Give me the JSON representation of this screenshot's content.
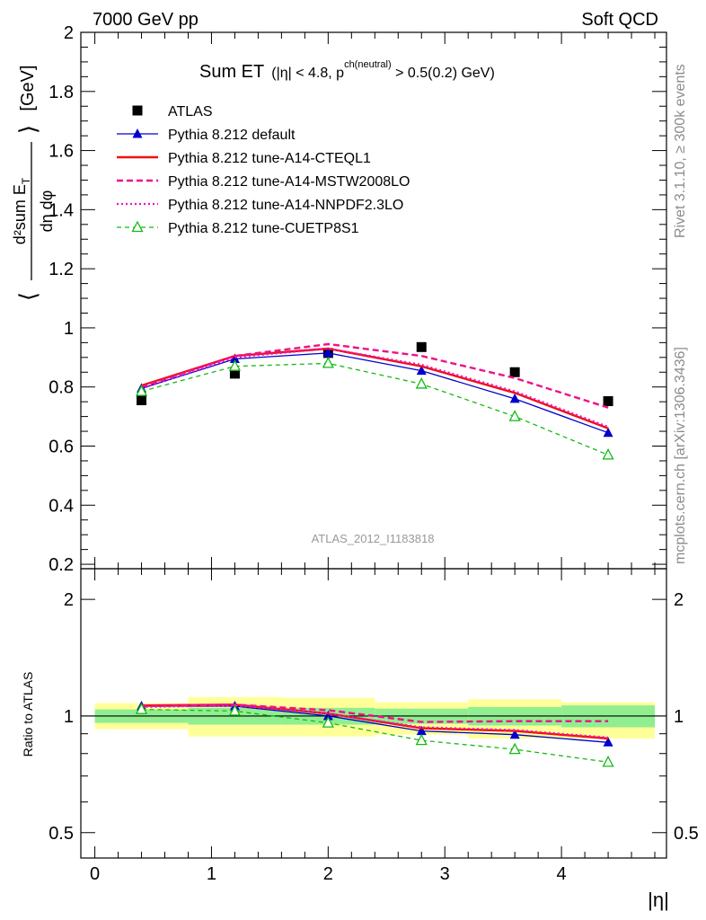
{
  "header": {
    "left": "7000 GeV pp",
    "right": "Soft QCD"
  },
  "side_labels": {
    "rivet": "Rivet 3.1.10, ≥ 300k events",
    "mcplots": "mcplots.cern.ch [arXiv:1306.3436]"
  },
  "watermark": "ATLAS_2012_I1183818",
  "colors": {
    "atlas": "#000000",
    "default": "#0000cc",
    "cteql1": "#ee1111",
    "mstw": "#ee1188",
    "nnpdf": "#ee11cc",
    "cuetp8s1": "#11bb11",
    "band_inner": "#90ee90",
    "band_outer": "#ffff99"
  },
  "chart_data": [
    {
      "type": "line",
      "panel": "main",
      "title_main": "Sum ET",
      "title_cut": "(|η| < 4.8, p",
      "title_sup": "ch(neutral)",
      "title_end": " > 0.5(0.2) GeV)",
      "ylabel_parts": {
        "open": "⟨",
        "num": "d²sum E",
        "num_sub": "T",
        "den": "dη dφ",
        "close": "⟩",
        "unit": "[GeV]"
      },
      "xlabel": "",
      "xlim": [
        -0.12,
        4.9
      ],
      "ylim": [
        0.185,
        2.0
      ],
      "yticks": [
        0.2,
        0.4,
        0.6,
        0.8,
        1,
        1.2,
        1.4,
        1.6,
        1.8,
        2
      ],
      "ytick_labels": [
        "0.2",
        "0.4",
        "0.6",
        "0.8",
        "1",
        "1.2",
        "1.4",
        "1.6",
        "1.8",
        "2"
      ],
      "x": [
        0.4,
        1.2,
        2.0,
        2.8,
        3.6,
        4.4
      ],
      "bins": [
        [
          0.0,
          0.8
        ],
        [
          0.8,
          1.6
        ],
        [
          1.6,
          2.4
        ],
        [
          2.4,
          3.2
        ],
        [
          3.2,
          4.0
        ],
        [
          4.0,
          4.8
        ]
      ],
      "series": [
        {
          "key": "atlas",
          "name": "ATLAS",
          "values": [
            0.755,
            0.845,
            0.915,
            0.935,
            0.85,
            0.752
          ]
        },
        {
          "key": "default",
          "name": "Pythia 8.212 default",
          "values": [
            0.795,
            0.895,
            0.915,
            0.855,
            0.76,
            0.645
          ]
        },
        {
          "key": "cteql1",
          "name": "Pythia 8.212 tune-A14-CTEQL1",
          "values": [
            0.805,
            0.905,
            0.93,
            0.87,
            0.78,
            0.66
          ]
        },
        {
          "key": "mstw",
          "name": "Pythia 8.212 tune-A14-MSTW2008LO",
          "values": [
            0.8,
            0.905,
            0.945,
            0.905,
            0.83,
            0.73
          ]
        },
        {
          "key": "nnpdf",
          "name": "Pythia 8.212 tune-A14-NNPDF2.3LO",
          "values": [
            0.795,
            0.9,
            0.93,
            0.875,
            0.785,
            0.665
          ]
        },
        {
          "key": "cuetp8s1",
          "name": "Pythia 8.212 tune-CUETP8S1",
          "values": [
            0.785,
            0.87,
            0.88,
            0.81,
            0.7,
            0.57
          ]
        }
      ]
    },
    {
      "type": "line",
      "panel": "ratio",
      "ylabel": "Ratio to ATLAS",
      "xlabel": "|η|",
      "xlim": [
        -0.12,
        4.9
      ],
      "ylim": [
        0.43,
        2.4
      ],
      "yscale": "log",
      "yticks": [
        0.5,
        1,
        2
      ],
      "ytick_labels": [
        "0.5",
        "1",
        "2"
      ],
      "xticks": [
        0,
        1,
        2,
        3,
        4
      ],
      "xtick_labels": [
        "0",
        "1",
        "2",
        "3",
        "4"
      ],
      "x": [
        0.4,
        1.2,
        2.0,
        2.8,
        3.6,
        4.4
      ],
      "bins": [
        [
          0.0,
          0.8
        ],
        [
          0.8,
          1.6
        ],
        [
          1.6,
          2.4
        ],
        [
          2.4,
          3.2
        ],
        [
          3.2,
          4.0
        ],
        [
          4.0,
          4.8
        ]
      ],
      "band_inner": [
        [
          0.96,
          1.04
        ],
        [
          0.95,
          1.05
        ],
        [
          0.95,
          1.05
        ],
        [
          0.955,
          1.045
        ],
        [
          0.945,
          1.055
        ],
        [
          0.935,
          1.065
        ]
      ],
      "band_outer": [
        [
          0.925,
          1.08
        ],
        [
          0.885,
          1.12
        ],
        [
          0.885,
          1.115
        ],
        [
          0.895,
          1.085
        ],
        [
          0.875,
          1.105
        ],
        [
          0.875,
          1.085
        ]
      ],
      "series": [
        {
          "key": "default",
          "name": "Pythia 8.212 default",
          "values": [
            1.06,
            1.06,
            1.0,
            0.915,
            0.895,
            0.855
          ]
        },
        {
          "key": "cteql1",
          "name": "Pythia 8.212 tune-A14-CTEQL1",
          "values": [
            1.065,
            1.07,
            1.015,
            0.93,
            0.915,
            0.875
          ]
        },
        {
          "key": "mstw",
          "name": "Pythia 8.212 tune-A14-MSTW2008LO",
          "values": [
            1.06,
            1.07,
            1.035,
            0.965,
            0.97,
            0.97
          ]
        },
        {
          "key": "nnpdf",
          "name": "Pythia 8.212 tune-A14-NNPDF2.3LO",
          "values": [
            1.055,
            1.065,
            1.015,
            0.935,
            0.92,
            0.88
          ]
        },
        {
          "key": "cuetp8s1",
          "name": "Pythia 8.212 tune-CUETP8S1",
          "values": [
            1.04,
            1.03,
            0.96,
            0.865,
            0.82,
            0.76
          ]
        }
      ]
    }
  ]
}
